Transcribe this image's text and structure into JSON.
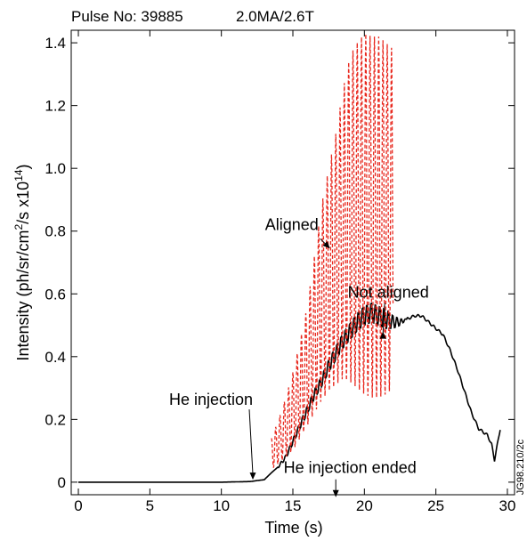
{
  "header": {
    "pulse": "Pulse No: 39885",
    "params": "2.0MA/2.6T"
  },
  "figure_code": "JG98.210/2c",
  "chart_data": {
    "type": "line",
    "xlabel": "Time (s)",
    "ylabel_parts": [
      "Intensity (ph/sr/cm",
      "2",
      "/s x10",
      "14",
      ")"
    ],
    "xlim": [
      -0.5,
      30.5
    ],
    "ylim": [
      -0.04,
      1.44
    ],
    "x_ticks": [
      0,
      5,
      10,
      15,
      20,
      25,
      30
    ],
    "y_ticks": [
      0,
      0.2,
      0.4,
      0.6,
      0.8,
      1.0,
      1.2,
      1.4
    ],
    "y_tick_labels": [
      "0",
      "0.2",
      "0.4",
      "0.6",
      "0.8",
      "1.0",
      "1.2",
      "1.4"
    ],
    "grid": false,
    "series": [
      {
        "name": "Not aligned",
        "color": "#000000",
        "style": "solid",
        "x": [
          0,
          5,
          10,
          12,
          13,
          13.5,
          14,
          14.5,
          15,
          15.5,
          16,
          16.5,
          17,
          17.5,
          18,
          18.5,
          19,
          19.5,
          20,
          20.5,
          21,
          21.5,
          22,
          22.5,
          23,
          23.5,
          24,
          24.5,
          25,
          25.5,
          26,
          26.5,
          27,
          27.5,
          28,
          28.3,
          28.6,
          28.9,
          29.1,
          29.3,
          29.5
        ],
        "y": [
          0.0,
          0.0,
          0.0,
          0.002,
          0.008,
          0.03,
          0.05,
          0.08,
          0.13,
          0.18,
          0.23,
          0.28,
          0.32,
          0.37,
          0.41,
          0.45,
          0.48,
          0.51,
          0.53,
          0.54,
          0.53,
          0.52,
          0.51,
          0.51,
          0.52,
          0.53,
          0.53,
          0.51,
          0.49,
          0.47,
          0.42,
          0.36,
          0.29,
          0.22,
          0.17,
          0.16,
          0.15,
          0.12,
          0.07,
          0.12,
          0.17
        ]
      },
      {
        "name": "Aligned",
        "color": "#e8281e",
        "style": "dashed",
        "x": [
          13.5,
          14,
          14.5,
          15,
          15.5,
          16,
          16.5,
          17,
          17.5,
          18,
          18.5,
          19,
          19.5,
          20,
          20.5,
          21,
          21.5,
          22
        ],
        "envelope_low": [
          0.04,
          0.06,
          0.08,
          0.1,
          0.14,
          0.18,
          0.22,
          0.26,
          0.29,
          0.31,
          0.33,
          0.32,
          0.3,
          0.28,
          0.27,
          0.27,
          0.28,
          0.3
        ],
        "envelope_high": [
          0.14,
          0.2,
          0.27,
          0.35,
          0.45,
          0.56,
          0.72,
          0.88,
          1.0,
          1.11,
          1.25,
          1.36,
          1.4,
          1.43,
          1.42,
          1.42,
          1.4,
          1.38
        ]
      }
    ],
    "annotations": [
      {
        "text": "Aligned",
        "x": 17.1,
        "y": 0.77
      },
      {
        "text": "Not aligned",
        "x": 21.3,
        "y": 0.48
      },
      {
        "text": "He injection",
        "x": 12.2,
        "y": 0.005
      },
      {
        "text": "He injection ended",
        "x": 18.0,
        "y": -0.025
      }
    ]
  }
}
